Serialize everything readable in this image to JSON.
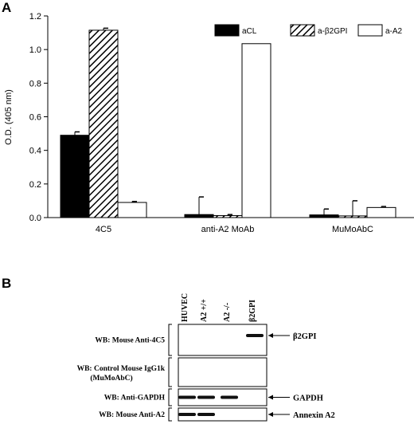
{
  "panel_a_letter": "A",
  "panel_b_letter": "B",
  "chart_data": {
    "type": "bar",
    "title": "",
    "ylabel": "O.D. (405 nm)",
    "xlabel": "",
    "ylim": [
      0,
      1.2
    ],
    "yticks": [
      0.0,
      0.2,
      0.4,
      0.6,
      0.8,
      1.0,
      1.2
    ],
    "ytick_labels": [
      "0.0",
      "0.2",
      "0.4",
      "0.6",
      "0.8",
      "1.0",
      "1.2"
    ],
    "categories": [
      "4C5",
      "anti-A2  MoAb",
      "MuMoAbC"
    ],
    "grid": false,
    "legend_position": "top-right",
    "series": [
      {
        "name": "aCL",
        "values": [
          0.49,
          0.018,
          0.016
        ],
        "errors": [
          0.02,
          0.105,
          0.035
        ],
        "fill": "black"
      },
      {
        "name": "a-β2GPI",
        "values": [
          1.115,
          0.012,
          0.01
        ],
        "errors": [
          0.012,
          0.006,
          0.09
        ],
        "fill": "hatch"
      },
      {
        "name": "a-A2",
        "values": [
          0.09,
          1.035,
          0.06
        ],
        "errors": [
          0.006,
          0.0,
          0.006
        ],
        "fill": "white"
      }
    ]
  },
  "blot": {
    "lanes": [
      "HUVEC",
      "A2 +/+",
      "A2 -/-",
      "β2GPI"
    ],
    "rows": [
      {
        "label": "WB: Mouse Anti-4C5",
        "label2": "",
        "band_name": "β2GPI",
        "bands": [
          0,
          0,
          0,
          1
        ]
      },
      {
        "label": "WB: Control Mouse IgG1k",
        "label2": "(MuMoAbC)",
        "band_name": "",
        "bands": [
          0,
          0,
          0,
          0
        ]
      },
      {
        "label": "WB: Anti-GAPDH",
        "label2": "",
        "band_name": "GAPDH",
        "bands": [
          1,
          1,
          1,
          0
        ]
      },
      {
        "label": "WB: Mouse Anti-A2",
        "label2": "",
        "band_name": "Annexin A2",
        "bands": [
          1,
          1,
          0,
          0
        ]
      }
    ]
  }
}
